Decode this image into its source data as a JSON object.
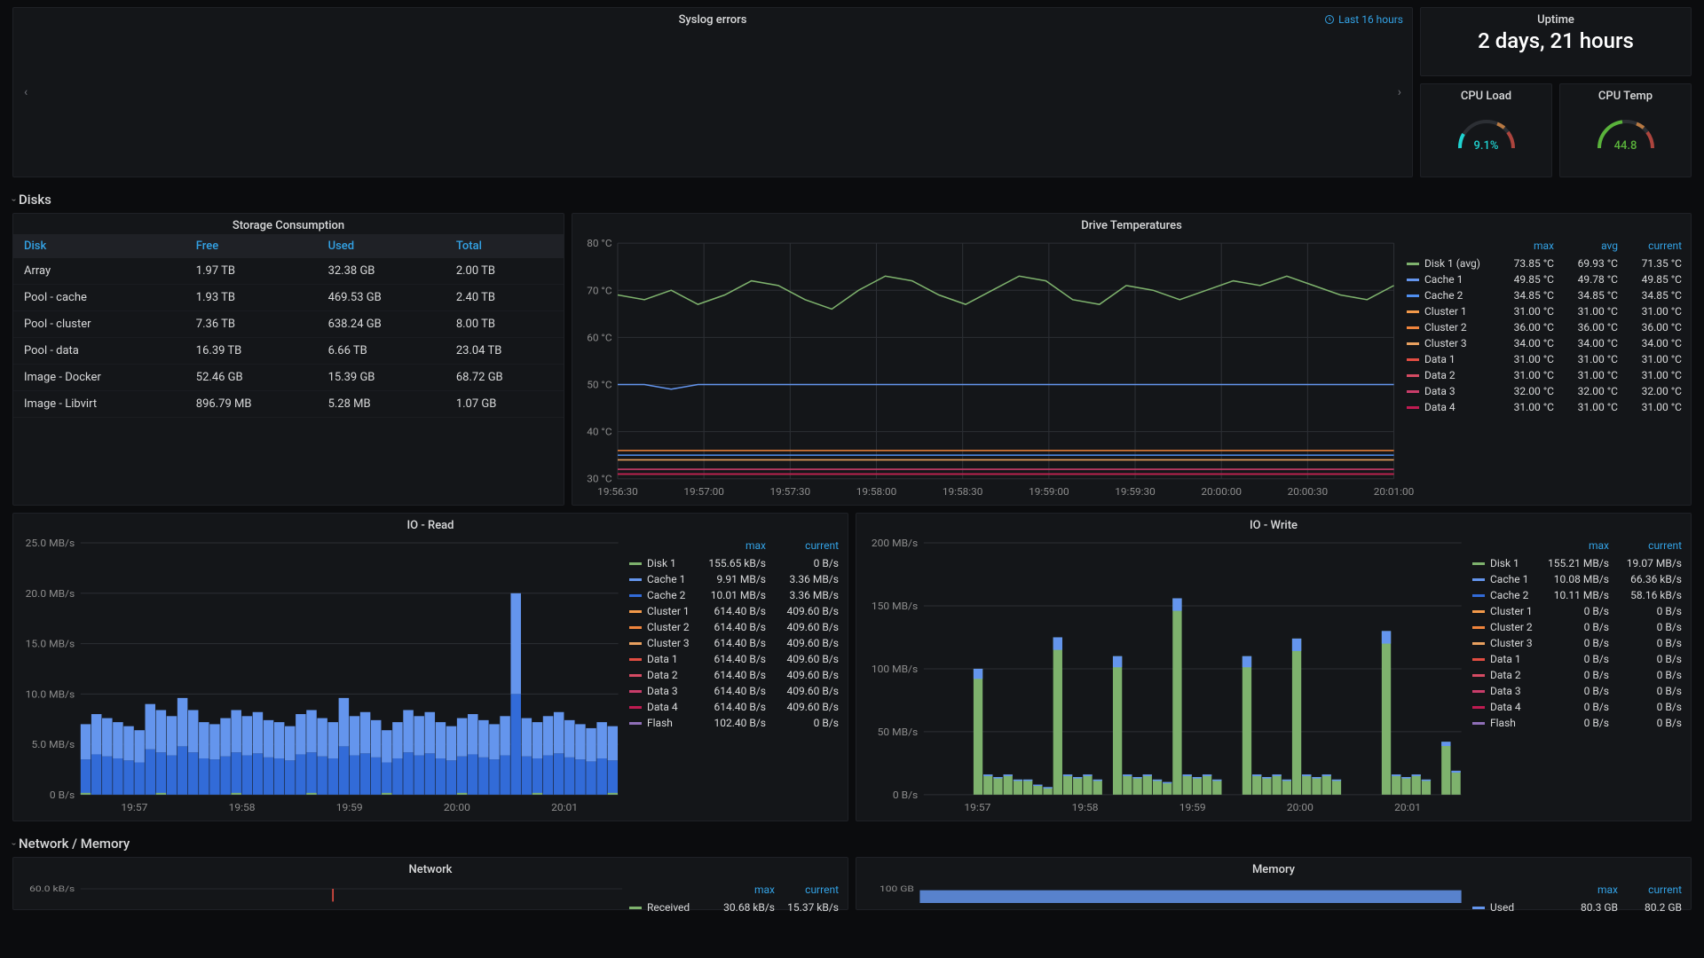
{
  "colors": {
    "bg": "#0b0c0e",
    "panel": "#141619",
    "border": "#1f2126",
    "text": "#d8d9da",
    "accent": "#33a2e5",
    "grid": "#2c2f34",
    "axis": "#8e8e8e"
  },
  "syslog": {
    "title": "Syslog errors",
    "time_label": "Last 16 hours"
  },
  "uptime": {
    "title": "Uptime",
    "value": "2 days, 21 hours"
  },
  "cpu_load": {
    "title": "CPU Load",
    "value": 9.1,
    "display": "9.1%",
    "color": "#1fd3d1",
    "min": 0,
    "max": 100
  },
  "cpu_temp": {
    "title": "CPU Temp",
    "value": 44.8,
    "display": "44.8",
    "color": "#5ab33b",
    "min": 0,
    "max": 100
  },
  "section_disks": "Disks",
  "section_nm": "Network / Memory",
  "storage": {
    "title": "Storage Consumption",
    "columns": [
      "Disk",
      "Free",
      "Used",
      "Total"
    ],
    "rows": [
      [
        "Array",
        "1.97 TB",
        "32.38 GB",
        "2.00 TB"
      ],
      [
        "Pool - cache",
        "1.93 TB",
        "469.53 GB",
        "2.40 TB"
      ],
      [
        "Pool - cluster",
        "7.36 TB",
        "638.24 GB",
        "8.00 TB"
      ],
      [
        "Pool - data",
        "16.39 TB",
        "6.66 TB",
        "23.04 TB"
      ],
      [
        "Image - Docker",
        "52.46 GB",
        "15.39 GB",
        "68.72 GB"
      ],
      [
        "Image - Libvirt",
        "896.79 MB",
        "5.28 MB",
        "1.07 GB"
      ]
    ]
  },
  "drive_temps": {
    "title": "Drive Temperatures",
    "type": "line",
    "ylim": [
      30,
      80
    ],
    "yticks": [
      30,
      40,
      50,
      60,
      70,
      80
    ],
    "yticklabels": [
      "30 °C",
      "40 °C",
      "50 °C",
      "60 °C",
      "70 °C",
      "80 °C"
    ],
    "xticklabels": [
      "19:56:30",
      "19:57:00",
      "19:57:30",
      "19:58:00",
      "19:58:30",
      "19:59:00",
      "19:59:30",
      "20:00:00",
      "20:00:30",
      "20:01:00"
    ],
    "legend_cols": [
      "max",
      "avg",
      "current"
    ],
    "series": [
      {
        "name": "Disk 1 (avg)",
        "color": "#7eb26d",
        "vals": [
          "73.85 °C",
          "69.93 °C",
          "71.35 °C"
        ],
        "y": [
          69,
          68,
          70,
          67,
          69,
          72,
          71,
          68,
          66,
          70,
          73,
          72,
          69,
          67,
          70,
          73,
          72,
          68,
          67,
          71,
          70,
          68,
          70,
          72,
          71,
          73,
          71,
          69,
          68,
          71
        ]
      },
      {
        "name": "Cache 1",
        "color": "#6495ed",
        "vals": [
          "49.85 °C",
          "49.78 °C",
          "49.85 °C"
        ],
        "y": [
          50,
          50,
          49,
          50,
          50,
          50,
          50,
          50,
          50,
          50,
          50,
          50,
          50,
          50,
          50,
          50,
          50,
          50,
          50,
          50,
          50,
          50,
          50,
          50,
          50,
          50,
          50,
          50,
          50,
          50
        ]
      },
      {
        "name": "Cache 2",
        "color": "#508ff0",
        "vals": [
          "34.85 °C",
          "34.85 °C",
          "34.85 °C"
        ],
        "y": 35
      },
      {
        "name": "Cluster 1",
        "color": "#f2994a",
        "vals": [
          "31.00 °C",
          "31.00 °C",
          "31.00 °C"
        ],
        "y": 31
      },
      {
        "name": "Cluster 2",
        "color": "#ef843c",
        "vals": [
          "36.00 °C",
          "36.00 °C",
          "36.00 °C"
        ],
        "y": 36
      },
      {
        "name": "Cluster 3",
        "color": "#e8a05f",
        "vals": [
          "34.00 °C",
          "34.00 °C",
          "34.00 °C"
        ],
        "y": 34
      },
      {
        "name": "Data 1",
        "color": "#e24d42",
        "vals": [
          "31.00 °C",
          "31.00 °C",
          "31.00 °C"
        ],
        "y": 31
      },
      {
        "name": "Data 2",
        "color": "#d64b63",
        "vals": [
          "31.00 °C",
          "31.00 °C",
          "31.00 °C"
        ],
        "y": 31
      },
      {
        "name": "Data 3",
        "color": "#c93d6a",
        "vals": [
          "32.00 °C",
          "32.00 °C",
          "32.00 °C"
        ],
        "y": 32
      },
      {
        "name": "Data 4",
        "color": "#bf1b51",
        "vals": [
          "31.00 °C",
          "31.00 °C",
          "31.00 °C"
        ],
        "y": 31
      }
    ]
  },
  "io_read": {
    "title": "IO - Read",
    "type": "stacked-bar",
    "ylim": [
      0,
      25
    ],
    "yticks": [
      0,
      5,
      10,
      15,
      20,
      25
    ],
    "yticklabels": [
      "0 B/s",
      "5.0 MB/s",
      "10.0 MB/s",
      "15.0 MB/s",
      "20.0 MB/s",
      "25.0 MB/s"
    ],
    "xticklabels": [
      "19:57",
      "19:58",
      "19:59",
      "20:00",
      "20:01"
    ],
    "legend_cols": [
      "max",
      "current"
    ],
    "series": [
      {
        "name": "Disk 1",
        "color": "#7eb26d",
        "vals": [
          "155.65 kB/s",
          "0 B/s"
        ]
      },
      {
        "name": "Cache 1",
        "color": "#6495ed",
        "vals": [
          "9.91 MB/s",
          "3.36 MB/s"
        ]
      },
      {
        "name": "Cache 2",
        "color": "#326bd8",
        "vals": [
          "10.01 MB/s",
          "3.36 MB/s"
        ]
      },
      {
        "name": "Cluster 1",
        "color": "#f2994a",
        "vals": [
          "614.40 B/s",
          "409.60 B/s"
        ]
      },
      {
        "name": "Cluster 2",
        "color": "#ef843c",
        "vals": [
          "614.40 B/s",
          "409.60 B/s"
        ]
      },
      {
        "name": "Cluster 3",
        "color": "#e8a05f",
        "vals": [
          "614.40 B/s",
          "409.60 B/s"
        ]
      },
      {
        "name": "Data 1",
        "color": "#e24d42",
        "vals": [
          "614.40 B/s",
          "409.60 B/s"
        ]
      },
      {
        "name": "Data 2",
        "color": "#d64b63",
        "vals": [
          "614.40 B/s",
          "409.60 B/s"
        ]
      },
      {
        "name": "Data 3",
        "color": "#c93d6a",
        "vals": [
          "614.40 B/s",
          "409.60 B/s"
        ]
      },
      {
        "name": "Data 4",
        "color": "#bf1b51",
        "vals": [
          "614.40 B/s",
          "409.60 B/s"
        ]
      },
      {
        "name": "Flash",
        "color": "#8f6fb8",
        "vals": [
          "102.40 B/s",
          "0 B/s"
        ]
      }
    ],
    "bars_top": [
      3.5,
      4,
      3.8,
      3.6,
      3.4,
      3.2,
      4.5,
      4.2,
      3.9,
      4.8,
      4.2,
      3.6,
      3.5,
      3.8,
      4.2,
      3.9,
      4.1,
      3.7,
      3.6,
      3.4,
      4.0,
      4.2,
      3.8,
      3.6,
      4.8,
      3.9,
      4.1,
      3.7,
      3.2,
      3.6,
      4.2,
      3.9,
      4.1,
      3.6,
      3.4,
      3.8,
      4.0,
      3.7,
      3.5,
      3.9,
      10,
      3.8,
      3.6,
      3.9,
      4.1,
      3.7,
      3.5,
      3.3,
      3.6,
      3.4
    ],
    "bars_bot": [
      3.5,
      4,
      3.8,
      3.6,
      3.4,
      3.2,
      4.5,
      4.2,
      3.9,
      4.8,
      4.2,
      3.6,
      3.5,
      3.8,
      4.2,
      3.9,
      4.1,
      3.7,
      3.6,
      3.4,
      4.0,
      4.2,
      3.8,
      3.6,
      4.8,
      3.9,
      4.1,
      3.7,
      3.2,
      3.6,
      4.2,
      3.9,
      4.1,
      3.6,
      3.4,
      3.8,
      4.0,
      3.7,
      3.5,
      3.9,
      10,
      3.8,
      3.6,
      3.9,
      4.1,
      3.7,
      3.5,
      3.3,
      3.6,
      3.4
    ]
  },
  "io_write": {
    "title": "IO - Write",
    "type": "stacked-bar",
    "ylim": [
      0,
      200
    ],
    "yticks": [
      0,
      50,
      100,
      150,
      200
    ],
    "yticklabels": [
      "0 B/s",
      "50 MB/s",
      "100 MB/s",
      "150 MB/s",
      "200 MB/s"
    ],
    "xticklabels": [
      "19:57",
      "19:58",
      "19:59",
      "20:00",
      "20:01"
    ],
    "legend_cols": [
      "max",
      "current"
    ],
    "series": [
      {
        "name": "Disk 1",
        "color": "#7eb26d",
        "vals": [
          "155.21 MB/s",
          "19.07 MB/s"
        ]
      },
      {
        "name": "Cache 1",
        "color": "#6495ed",
        "vals": [
          "10.08 MB/s",
          "66.36 kB/s"
        ]
      },
      {
        "name": "Cache 2",
        "color": "#326bd8",
        "vals": [
          "10.11 MB/s",
          "58.16 kB/s"
        ]
      },
      {
        "name": "Cluster 1",
        "color": "#f2994a",
        "vals": [
          "0 B/s",
          "0 B/s"
        ]
      },
      {
        "name": "Cluster 2",
        "color": "#ef843c",
        "vals": [
          "0 B/s",
          "0 B/s"
        ]
      },
      {
        "name": "Cluster 3",
        "color": "#e8a05f",
        "vals": [
          "0 B/s",
          "0 B/s"
        ]
      },
      {
        "name": "Data 1",
        "color": "#e24d42",
        "vals": [
          "0 B/s",
          "0 B/s"
        ]
      },
      {
        "name": "Data 2",
        "color": "#d64b63",
        "vals": [
          "0 B/s",
          "0 B/s"
        ]
      },
      {
        "name": "Data 3",
        "color": "#c93d6a",
        "vals": [
          "0 B/s",
          "0 B/s"
        ]
      },
      {
        "name": "Data 4",
        "color": "#bf1b51",
        "vals": [
          "0 B/s",
          "0 B/s"
        ]
      },
      {
        "name": "Flash",
        "color": "#8f6fb8",
        "vals": [
          "0 B/s",
          "0 B/s"
        ]
      }
    ],
    "bars": [
      0,
      0,
      0,
      0,
      0,
      100,
      16,
      14,
      16,
      12,
      12,
      8,
      6,
      125,
      16,
      14,
      16,
      12,
      0,
      110,
      16,
      14,
      16,
      12,
      10,
      156,
      16,
      14,
      16,
      12,
      0,
      0,
      110,
      16,
      14,
      16,
      12,
      124,
      16,
      14,
      16,
      12,
      0,
      0,
      0,
      0,
      130,
      16,
      14,
      16,
      12,
      0,
      42,
      19
    ]
  },
  "network": {
    "title": "Network",
    "yticklabels": [
      "60.0 kB/s"
    ],
    "legend_cols": [
      "max",
      "current"
    ],
    "series": [
      {
        "name": "Received",
        "color": "#7eb26d",
        "vals": [
          "30.68 kB/s",
          "15.37 kB/s"
        ]
      }
    ]
  },
  "memory": {
    "title": "Memory",
    "yticklabels": [
      "100 GB"
    ],
    "legend_cols": [
      "max",
      "current"
    ],
    "series": [
      {
        "name": "Used",
        "color": "#6495ed",
        "vals": [
          "80.3 GB",
          "80.2 GB"
        ]
      }
    ],
    "fill_color": "#6495ed",
    "fill_val": 80
  }
}
